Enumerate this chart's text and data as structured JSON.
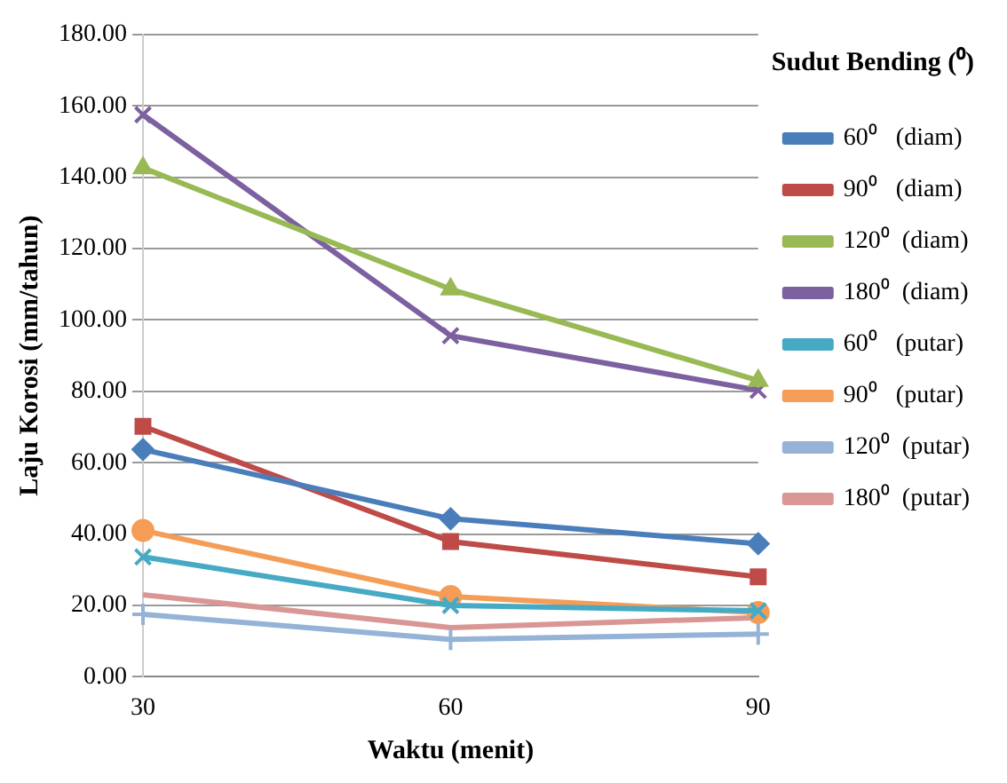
{
  "chart_data": {
    "type": "line",
    "xlabel": "Waktu (menit)",
    "ylabel": "Laju Korosi (mm/tahun)",
    "legend_title": "Sudut Bending (⁰)",
    "categories": [
      "30",
      "60",
      "90"
    ],
    "ylim": [
      0,
      180
    ],
    "yticks": [
      {
        "value": 0,
        "label": "0.00"
      },
      {
        "value": 20,
        "label": "20.00"
      },
      {
        "value": 40,
        "label": "40.00"
      },
      {
        "value": 60,
        "label": "60.00"
      },
      {
        "value": 80,
        "label": "80.00"
      },
      {
        "value": 100,
        "label": "100.00"
      },
      {
        "value": 120,
        "label": "120.00"
      },
      {
        "value": 140,
        "label": "140.00"
      },
      {
        "value": 160,
        "label": "160.00"
      },
      {
        "value": 180,
        "label": "180.00"
      }
    ],
    "grid": "y",
    "legend": "right",
    "line_style": "solid",
    "series": [
      {
        "name": "60⁰   (diam)",
        "color": "#4a7ebb",
        "marker": "diamond",
        "values": [
          63.7,
          44.3,
          37.3
        ]
      },
      {
        "name": "90⁰   (diam)",
        "color": "#be4b48",
        "marker": "square",
        "values": [
          70.2,
          37.9,
          28
        ]
      },
      {
        "name": "120⁰  (diam)",
        "color": "#98b954",
        "marker": "triangle",
        "values": [
          142.6,
          108.6,
          83
        ]
      },
      {
        "name": "180⁰  (diam)",
        "color": "#7d60a0",
        "marker": "cross",
        "values": [
          157.5,
          95.6,
          80.3
        ]
      },
      {
        "name": "60⁰   (putar)",
        "color": "#46aac5",
        "marker": "cross",
        "values": [
          33.6,
          20,
          18.5
        ]
      },
      {
        "name": "90⁰   (putar)",
        "color": "#f59d56",
        "marker": "circle",
        "values": [
          41,
          22.5,
          18
        ]
      },
      {
        "name": "120⁰  (putar)",
        "color": "#95b3d7",
        "marker": "plus",
        "values": [
          17.5,
          10.5,
          12
        ]
      },
      {
        "name": "180⁰  (putar)",
        "color": "#d99694",
        "marker": "none",
        "values": [
          23,
          13.8,
          16.6
        ]
      }
    ]
  }
}
